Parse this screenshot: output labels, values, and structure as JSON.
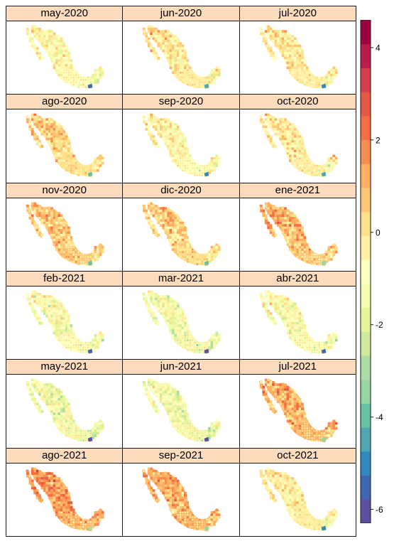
{
  "chart_data": {
    "type": "heatmap",
    "subtype": "faceted choropleth map",
    "layout": {
      "rows": 6,
      "cols": 3
    },
    "panels": [
      {
        "label": "may-2020",
        "mean": -0.8
      },
      {
        "label": "jun-2020",
        "mean": -0.2
      },
      {
        "label": "jul-2020",
        "mean": -0.3
      },
      {
        "label": "ago-2020",
        "mean": 0.3
      },
      {
        "label": "sep-2020",
        "mean": -0.6
      },
      {
        "label": "oct-2020",
        "mean": -0.2
      },
      {
        "label": "nov-2020",
        "mean": 0.6
      },
      {
        "label": "dic-2020",
        "mean": 0.4
      },
      {
        "label": "ene-2021",
        "mean": 0.8
      },
      {
        "label": "feb-2021",
        "mean": -1.1
      },
      {
        "label": "mar-2021",
        "mean": -1.4
      },
      {
        "label": "abr-2021",
        "mean": -1.0
      },
      {
        "label": "may-2021",
        "mean": -1.6
      },
      {
        "label": "jun-2021",
        "mean": -1.3
      },
      {
        "label": "jul-2021",
        "mean": 1.0
      },
      {
        "label": "ago-2021",
        "mean": 1.4
      },
      {
        "label": "sep-2021",
        "mean": 1.0
      },
      {
        "label": "oct-2021",
        "mean": -0.4
      }
    ],
    "colorbar": {
      "min": -6.3,
      "max": 4.6,
      "ticks": [
        4,
        2,
        0,
        -2,
        -4,
        -6
      ],
      "tick_labels": [
        "4",
        "2",
        "0",
        "-2",
        "-4",
        "-6"
      ],
      "palette": "Spectral (reversed)",
      "colors": [
        "#5e4fa2",
        "#3f66b0",
        "#3288bd",
        "#4fa6b4",
        "#66c2a5",
        "#99d5a4",
        "#abdda4",
        "#cdea9d",
        "#e6f598",
        "#f5fbb0",
        "#ffffbf",
        "#fff0a6",
        "#fee08b",
        "#fdc776",
        "#fdae61",
        "#f88d52",
        "#f46d43",
        "#e55846",
        "#d53e4f",
        "#b91e4a",
        "#9e0142"
      ]
    }
  }
}
